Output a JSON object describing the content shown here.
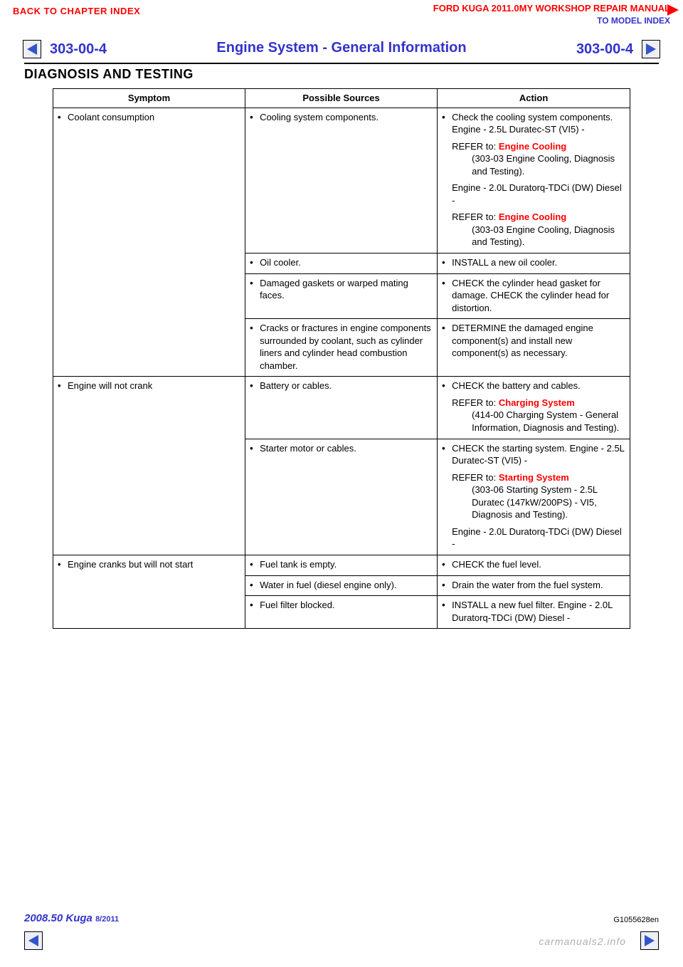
{
  "top": {
    "back_link": "BACK TO CHAPTER INDEX",
    "manual_title": "FORD KUGA 2011.0MY WORKSHOP REPAIR MANUAL",
    "model_index": "TO MODEL INDEX"
  },
  "header": {
    "code_left": "303-00-4",
    "code_right": "303-00-4",
    "title": "Engine System - General Information"
  },
  "dt_heading": "DIAGNOSIS AND TESTING",
  "table": {
    "headers": {
      "c1": "Symptom",
      "c2": "Possible Sources",
      "c3": "Action"
    },
    "colors": {
      "border": "#000000",
      "text": "#000000",
      "link": "#ff0000",
      "header_link": "#3333cc"
    },
    "font": {
      "family": "Arial",
      "size_pt": 10,
      "header_weight": "bold"
    },
    "rows": [
      {
        "symptom": "Coolant consumption",
        "cells": [
          {
            "source": "Cooling system components.",
            "action_plain_pre": "Check the cooling system components. Engine - 2.5L Duratec-ST (VI5) -",
            "action_refer_label": "REFER to: ",
            "action_refer_link": "Engine Cooling",
            "action_refer_tail": "(303-03 Engine Cooling, Diagnosis and Testing).",
            "action_mid": "Engine - 2.0L Duratorq-TDCi (DW) Diesel -",
            "action_refer_label2": "REFER to: ",
            "action_refer_link2": "Engine Cooling",
            "action_refer_tail2": "(303-03 Engine Cooling, Diagnosis and Testing)."
          },
          {
            "source": "Oil cooler.",
            "action_plain": "INSTALL a new oil cooler."
          },
          {
            "source": "Damaged gaskets or warped mating faces.",
            "action_plain": "CHECK the cylinder head gasket for damage. CHECK the cylinder head for distortion."
          },
          {
            "source": "Cracks or fractures in engine components surrounded by coolant, such as cylinder liners and cylinder head combustion chamber.",
            "action_plain": "DETERMINE the damaged engine component(s) and install new component(s) as necessary."
          }
        ]
      },
      {
        "symptom": "Engine will not crank",
        "cells": [
          {
            "source": "Battery or cables.",
            "action_plain_pre": "CHECK the battery and cables.",
            "action_refer_label": "REFER to: ",
            "action_refer_link": "Charging System",
            "action_refer_tail": "(414-00 Charging System - General Information, Diagnosis and Testing)."
          },
          {
            "source": "Starter motor or cables.",
            "action_plain_pre": "CHECK the starting system. Engine - 2.5L Duratec-ST (VI5) -",
            "action_refer_label": "REFER to: ",
            "action_refer_link": "Starting System",
            "action_refer_tail": "(303-06 Starting System - 2.5L Duratec (147kW/200PS) - VI5, Diagnosis and Testing).",
            "action_mid": "Engine - 2.0L Duratorq-TDCi (DW) Diesel -"
          }
        ]
      },
      {
        "symptom": "Engine cranks but will not start",
        "cells": [
          {
            "source": "Fuel tank is empty.",
            "action_plain": "CHECK the fuel level."
          },
          {
            "source": "Water in fuel (diesel engine only).",
            "action_plain": "Drain the water from the fuel system."
          },
          {
            "source": "Fuel filter blocked.",
            "action_plain": "INSTALL a new fuel filter. Engine - 2.0L Duratorq-TDCi (DW) Diesel -"
          }
        ]
      }
    ]
  },
  "footer": {
    "left_main": "2008.50 Kuga",
    "left_yr": "8/2011",
    "right": "G1055628en"
  },
  "watermark": "carmanuals2.info"
}
